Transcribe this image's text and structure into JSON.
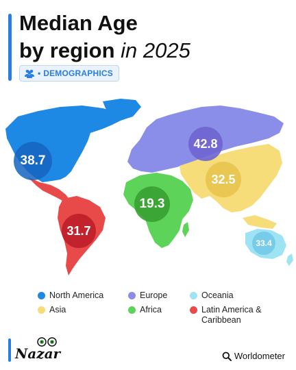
{
  "title": {
    "line1": "Median Age",
    "line2_bold": "by region",
    "line2_italic": "in 2025"
  },
  "tag": {
    "icon": "people-icon",
    "bullet": "•",
    "label": "DEMOGRAPHICS"
  },
  "regions": {
    "north_america": {
      "name": "North America",
      "median_age": "38.7",
      "color": "#1e88e5"
    },
    "europe": {
      "name": "Europe",
      "median_age": "42.8",
      "color": "#8a8ee8"
    },
    "oceania": {
      "name": "Oceania",
      "median_age": "33.4",
      "color": "#9ee3f3"
    },
    "asia": {
      "name": "Asia",
      "median_age": "32.5",
      "color": "#f6dd7a"
    },
    "africa": {
      "name": "Africa",
      "median_age": "19.3",
      "color": "#5dd35a"
    },
    "latin_america": {
      "name": "Latin America & Caribbean",
      "median_age": "31.7",
      "color": "#e84a4a"
    }
  },
  "legend": {
    "north_america": "North America",
    "europe": "Europe",
    "oceania": "Oceania",
    "asia": "Asia",
    "africa": "Africa",
    "latin_america": "Latin America & Caribbean"
  },
  "brand": {
    "logo_text": "Nazar"
  },
  "source": {
    "icon": "search-icon",
    "label": "Worldometer"
  }
}
